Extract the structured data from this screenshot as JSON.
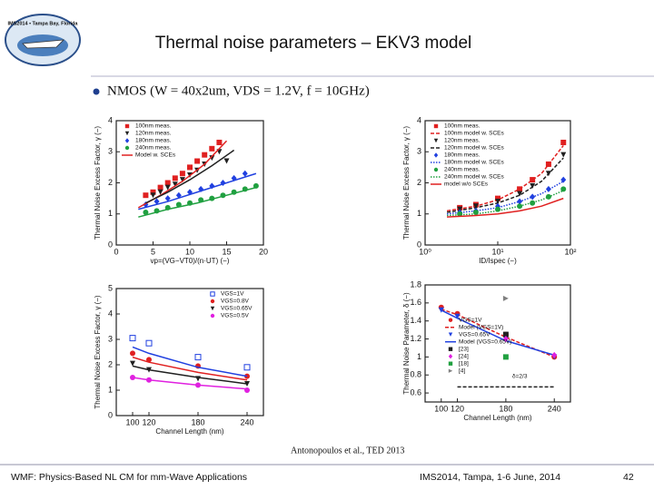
{
  "slide": {
    "logo_text": "IMS2014 • Tampa Bay, Florida",
    "title": "Thermal noise parameters – EKV3 model",
    "bullet": "NMOS (W = 40x2um, VDS = 1.2V, f = 10GHz)",
    "citation": "Antonopoulos et al., TED 2013",
    "footer_left": "WMF: Physics-Based NL CM for mm-Wave Applications",
    "footer_center": "IMS2014, Tampa, 1-6 June, 2014",
    "page_number": "42"
  },
  "chart_data": [
    {
      "type": "scatter",
      "xlabel": "vp=(VG−VT0)/(n·UT) (−)",
      "ylabel": "Thermal Noise Excess Factor, γ (−)",
      "xlim": [
        0,
        20
      ],
      "ylim": [
        0,
        4
      ],
      "xticks": [
        0,
        5,
        10,
        15,
        20
      ],
      "yticks": [
        0,
        1,
        2,
        3,
        4
      ],
      "legend": "upper left",
      "series": [
        {
          "name": "100nm meas.",
          "color": "#e02020",
          "marker": "square",
          "x": [
            4,
            5,
            6,
            7,
            8,
            9,
            10,
            11,
            12,
            13,
            14
          ],
          "values": [
            1.6,
            1.7,
            1.85,
            2.0,
            2.15,
            2.3,
            2.5,
            2.7,
            2.9,
            3.1,
            3.3
          ]
        },
        {
          "name": "120nm meas.",
          "color": "#202020",
          "marker": "tri-down",
          "x": [
            5,
            6,
            7,
            8,
            9,
            10,
            11,
            12,
            13,
            14,
            15
          ],
          "values": [
            1.6,
            1.7,
            1.85,
            1.95,
            2.1,
            2.25,
            2.4,
            2.6,
            2.8,
            3.0,
            2.7
          ]
        },
        {
          "name": "180nm meas.",
          "color": "#2040e0",
          "marker": "diamond",
          "x": [
            4,
            5.5,
            7,
            8.5,
            10,
            11.5,
            13,
            14.5,
            16,
            17.5
          ],
          "values": [
            1.3,
            1.4,
            1.5,
            1.6,
            1.7,
            1.8,
            1.9,
            2.0,
            2.15,
            2.3
          ]
        },
        {
          "name": "240nm meas.",
          "color": "#20a040",
          "marker": "circle",
          "x": [
            4,
            5.5,
            7,
            8.5,
            10,
            11.5,
            13,
            14.5,
            16,
            17.5,
            19
          ],
          "values": [
            1.05,
            1.1,
            1.2,
            1.3,
            1.35,
            1.45,
            1.5,
            1.6,
            1.7,
            1.8,
            1.9
          ]
        },
        {
          "name": "Model w. SCEs",
          "color": "#e02020",
          "line": "solid",
          "x": [
            3,
            6,
            9,
            12,
            15
          ],
          "values": [
            1.2,
            1.6,
            2.05,
            2.6,
            3.35
          ]
        },
        {
          "color": "#202020",
          "line": "solid",
          "x": [
            4,
            7,
            10,
            13,
            16
          ],
          "values": [
            1.35,
            1.7,
            2.1,
            2.55,
            3.05
          ]
        },
        {
          "color": "#2040e0",
          "line": "solid",
          "x": [
            3,
            7,
            11,
            15,
            19
          ],
          "values": [
            1.15,
            1.4,
            1.7,
            2.0,
            2.3
          ]
        },
        {
          "color": "#20a040",
          "line": "solid",
          "x": [
            3,
            7,
            11,
            15,
            19
          ],
          "values": [
            0.9,
            1.15,
            1.35,
            1.6,
            1.85
          ]
        }
      ]
    },
    {
      "type": "scatter",
      "xlabel": "ID/Ispec (−)",
      "ylabel": "Thermal Noise Excess Factor, γ (−)",
      "xlim": [
        1,
        100
      ],
      "ylim": [
        0,
        4
      ],
      "xlog": true,
      "xticks": [
        {
          "value": 1,
          "label": "10⁰"
        },
        {
          "value": 10,
          "label": "10¹"
        },
        {
          "value": 100,
          "label": "10²"
        }
      ],
      "yticks": [
        0,
        1,
        2,
        3,
        4
      ],
      "legend": "upper left",
      "series": [
        {
          "name": "100nm meas.",
          "color": "#e02020",
          "marker": "square",
          "x": [
            3,
            5,
            10,
            20,
            30,
            50,
            80
          ],
          "values": [
            1.2,
            1.3,
            1.5,
            1.8,
            2.1,
            2.6,
            3.3
          ]
        },
        {
          "name": "100nm model w. SCEs",
          "color": "#e02020",
          "line": "dashed",
          "x": [
            2,
            5,
            10,
            20,
            40,
            80
          ],
          "values": [
            1.1,
            1.25,
            1.45,
            1.8,
            2.3,
            3.2
          ]
        },
        {
          "name": "120nm meas.",
          "color": "#202020",
          "marker": "tri-down",
          "x": [
            3,
            5,
            10,
            20,
            30,
            50,
            80
          ],
          "values": [
            1.15,
            1.25,
            1.4,
            1.65,
            1.9,
            2.3,
            2.9
          ]
        },
        {
          "name": "120nm model w. SCEs",
          "color": "#202020",
          "line": "dashed",
          "x": [
            2,
            5,
            10,
            20,
            40,
            80
          ],
          "values": [
            1.05,
            1.2,
            1.35,
            1.6,
            2.05,
            2.8
          ]
        },
        {
          "name": "180nm meas.",
          "color": "#2040e0",
          "marker": "diamond",
          "x": [
            3,
            5,
            10,
            20,
            30,
            50,
            80
          ],
          "values": [
            1.05,
            1.1,
            1.25,
            1.4,
            1.55,
            1.8,
            2.1
          ]
        },
        {
          "name": "180nm model w. SCEs",
          "color": "#2040e0",
          "line": "dotted",
          "x": [
            2,
            5,
            10,
            20,
            40,
            80
          ],
          "values": [
            1.0,
            1.1,
            1.2,
            1.4,
            1.65,
            2.05
          ]
        },
        {
          "name": "240nm meas.",
          "color": "#20a040",
          "marker": "circle",
          "x": [
            3,
            5,
            10,
            20,
            30,
            50,
            80
          ],
          "values": [
            1.0,
            1.05,
            1.15,
            1.25,
            1.35,
            1.55,
            1.8
          ]
        },
        {
          "name": "240nm model w. SCEs",
          "color": "#20a040",
          "line": "dotted",
          "x": [
            2,
            5,
            10,
            20,
            40,
            80
          ],
          "values": [
            0.95,
            1.0,
            1.1,
            1.25,
            1.45,
            1.75
          ]
        },
        {
          "name": "model w/o SCEs",
          "color": "#e02020",
          "line": "solid",
          "x": [
            2,
            5,
            10,
            20,
            40,
            80
          ],
          "values": [
            0.9,
            0.95,
            1.0,
            1.1,
            1.25,
            1.5
          ]
        }
      ]
    },
    {
      "type": "scatter",
      "xlabel": "Channel Length (nm)",
      "ylabel": "Thermal Noise Excess Factor, γ (−)",
      "xlim": [
        80,
        260
      ],
      "ylim": [
        0,
        5
      ],
      "xticks": [
        100,
        120,
        180,
        240
      ],
      "yticks": [
        0,
        1,
        2,
        3,
        4,
        5
      ],
      "legend": "upper right",
      "series": [
        {
          "name": "VGS=1V",
          "color": "#2040e0",
          "marker": "square-open",
          "x": [
            100,
            120,
            180,
            240
          ],
          "values": [
            3.05,
            2.85,
            2.3,
            1.9
          ]
        },
        {
          "name": "VGS=0.8V",
          "color": "#e02020",
          "marker": "circle",
          "x": [
            100,
            120,
            180,
            240
          ],
          "values": [
            2.45,
            2.2,
            1.95,
            1.55
          ]
        },
        {
          "name": "VGS=0.65V",
          "color": "#202020",
          "marker": "tri-down",
          "x": [
            100,
            120,
            180,
            240
          ],
          "values": [
            2.05,
            1.8,
            1.45,
            1.25
          ]
        },
        {
          "name": "VGS=0.5V",
          "color": "#e020e0",
          "marker": "circle",
          "x": [
            100,
            120,
            180,
            240
          ],
          "values": [
            1.5,
            1.4,
            1.2,
            1.0
          ]
        },
        {
          "color": "#2040e0",
          "line": "solid",
          "x": [
            100,
            120,
            180,
            240
          ],
          "values": [
            2.7,
            2.45,
            1.9,
            1.55
          ]
        },
        {
          "color": "#e02020",
          "line": "solid",
          "x": [
            100,
            120,
            180,
            240
          ],
          "values": [
            2.3,
            2.1,
            1.7,
            1.4
          ]
        },
        {
          "color": "#202020",
          "line": "solid",
          "x": [
            100,
            120,
            180,
            240
          ],
          "values": [
            1.95,
            1.8,
            1.5,
            1.25
          ]
        },
        {
          "color": "#e020e0",
          "line": "solid",
          "x": [
            100,
            120,
            180,
            240
          ],
          "values": [
            1.5,
            1.4,
            1.2,
            1.05
          ]
        }
      ]
    },
    {
      "type": "scatter",
      "xlabel": "Channel Length (nm)",
      "ylabel": "Thermal Noise Parameter, δ (−)",
      "xlim": [
        80,
        260
      ],
      "ylim": [
        0.5,
        1.8
      ],
      "xticks": [
        100,
        120,
        180,
        240
      ],
      "yticks": [
        0.6,
        0.8,
        1,
        1.2,
        1.4,
        1.6,
        1.8
      ],
      "legend": "center left",
      "annotation": "δ=2/3",
      "series": [
        {
          "name": "VGS=1V",
          "color": "#e02020",
          "marker": "circle",
          "x": [
            100,
            120,
            180,
            240
          ],
          "values": [
            1.55,
            1.48,
            1.25,
            1.0
          ]
        },
        {
          "name": "Model (VGS=1V)",
          "color": "#e02020",
          "line": "dashed",
          "x": [
            100,
            120,
            180,
            240
          ],
          "values": [
            1.53,
            1.47,
            1.22,
            1.0
          ]
        },
        {
          "name": "VGS=0.65V",
          "color": "#2040e0",
          "marker": "tri-down",
          "x": [
            100,
            120,
            180,
            240
          ],
          "values": [
            1.52,
            1.45,
            1.2,
            1.0
          ]
        },
        {
          "name": "Model (VGS=0.65V)",
          "color": "#2040e0",
          "line": "solid",
          "x": [
            100,
            120,
            180,
            240
          ],
          "values": [
            1.52,
            1.43,
            1.18,
            1.02
          ]
        },
        {
          "name": "[23]",
          "color": "#202020",
          "marker": "square",
          "x": [
            180
          ],
          "values": [
            1.25
          ]
        },
        {
          "name": "[24]",
          "color": "#e020e0",
          "marker": "diamond",
          "x": [
            180,
            240
          ],
          "values": [
            1.2,
            1.02
          ]
        },
        {
          "name": "[18]",
          "color": "#20a040",
          "marker": "square",
          "x": [
            180
          ],
          "values": [
            1.0
          ]
        },
        {
          "name": "[4]",
          "color": "#808080",
          "marker": "tri-right",
          "x": [
            180
          ],
          "values": [
            1.65
          ]
        },
        {
          "color": "#202020",
          "line": "dashed",
          "x": [
            120,
            240
          ],
          "values": [
            0.667,
            0.667
          ]
        }
      ]
    }
  ]
}
